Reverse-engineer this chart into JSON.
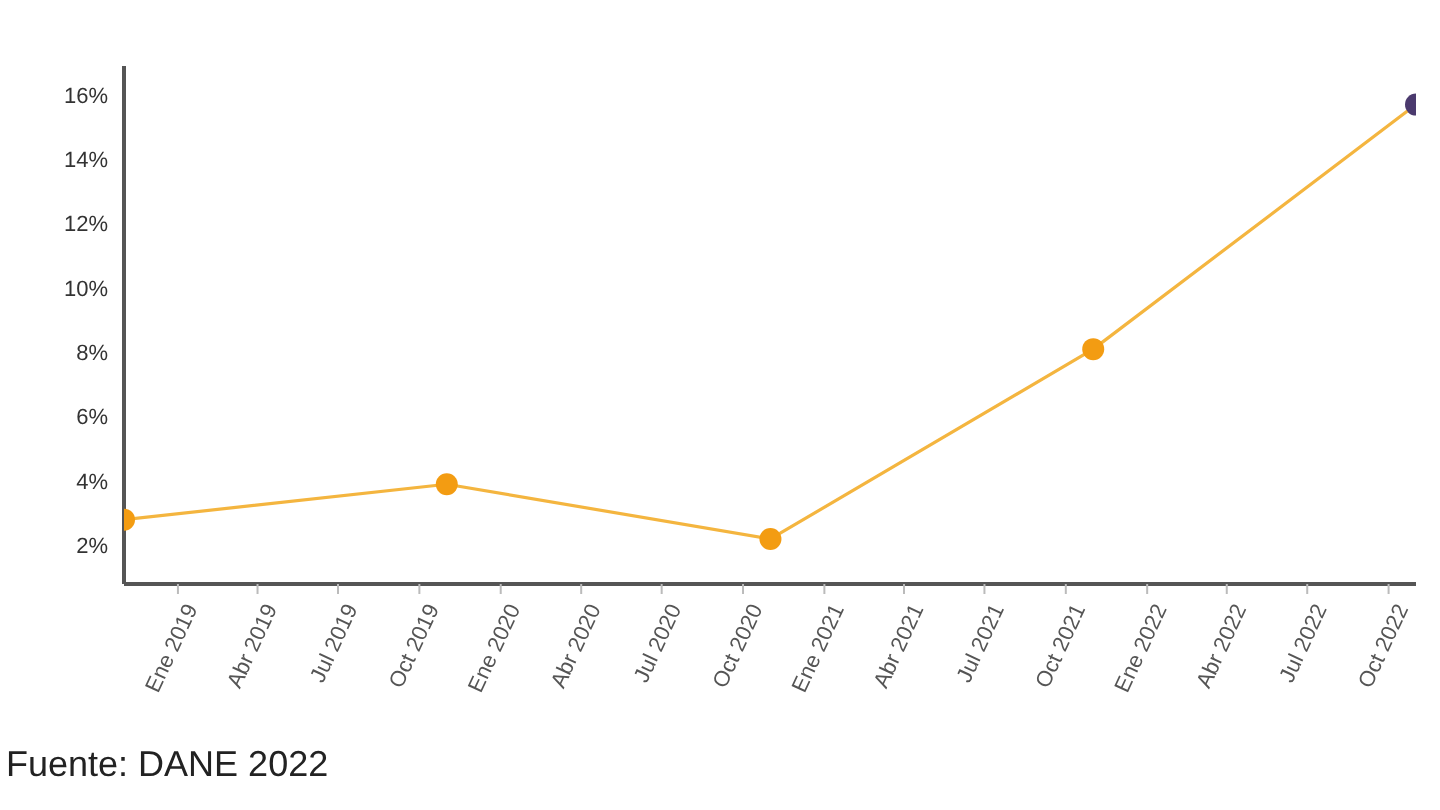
{
  "chart_data": {
    "type": "line",
    "x": [
      "2018-11",
      "2019-11",
      "2020-11",
      "2021-11",
      "2022-11"
    ],
    "series": [
      {
        "color": "#f4b53f",
        "colors": [
          "#f39c12",
          "#f39c12",
          "#f39c12",
          "#f39c12",
          "#4b3a6e"
        ],
        "values": [
          2.8,
          3.9,
          2.2,
          8.1,
          15.7
        ]
      }
    ],
    "xlim": [
      "2018-11",
      "2022-11"
    ],
    "xticks": [
      {
        "value": "2019-01",
        "label": "Ene 2019"
      },
      {
        "value": "2019-04",
        "label": "Abr 2019"
      },
      {
        "value": "2019-07",
        "label": "Jul 2019"
      },
      {
        "value": "2019-10",
        "label": "Oct 2019"
      },
      {
        "value": "2020-01",
        "label": "Ene 2020"
      },
      {
        "value": "2020-04",
        "label": "Abr 2020"
      },
      {
        "value": "2020-07",
        "label": "Jul 2020"
      },
      {
        "value": "2020-10",
        "label": "Oct 2020"
      },
      {
        "value": "2021-01",
        "label": "Ene 2021"
      },
      {
        "value": "2021-04",
        "label": "Abr 2021"
      },
      {
        "value": "2021-07",
        "label": "Jul 2021"
      },
      {
        "value": "2021-10",
        "label": "Oct 2021"
      },
      {
        "value": "2022-01",
        "label": "Ene 2022"
      },
      {
        "value": "2022-04",
        "label": "Abr 2022"
      },
      {
        "value": "2022-07",
        "label": "Jul 2022"
      },
      {
        "value": "2022-10",
        "label": "Oct 2022"
      }
    ],
    "ylim": [
      0.8,
      16.9
    ],
    "yticks": [
      {
        "value": 2,
        "label": "2%"
      },
      {
        "value": 4,
        "label": "4%"
      },
      {
        "value": 6,
        "label": "6%"
      },
      {
        "value": 8,
        "label": "8%"
      },
      {
        "value": 10,
        "label": "10%"
      },
      {
        "value": 12,
        "label": "12%"
      },
      {
        "value": 14,
        "label": "14%"
      },
      {
        "value": 16,
        "label": "16%"
      }
    ],
    "marker": "circle",
    "line_style": "solid",
    "annotations": [
      "Fuente: DANE 2022"
    ]
  }
}
